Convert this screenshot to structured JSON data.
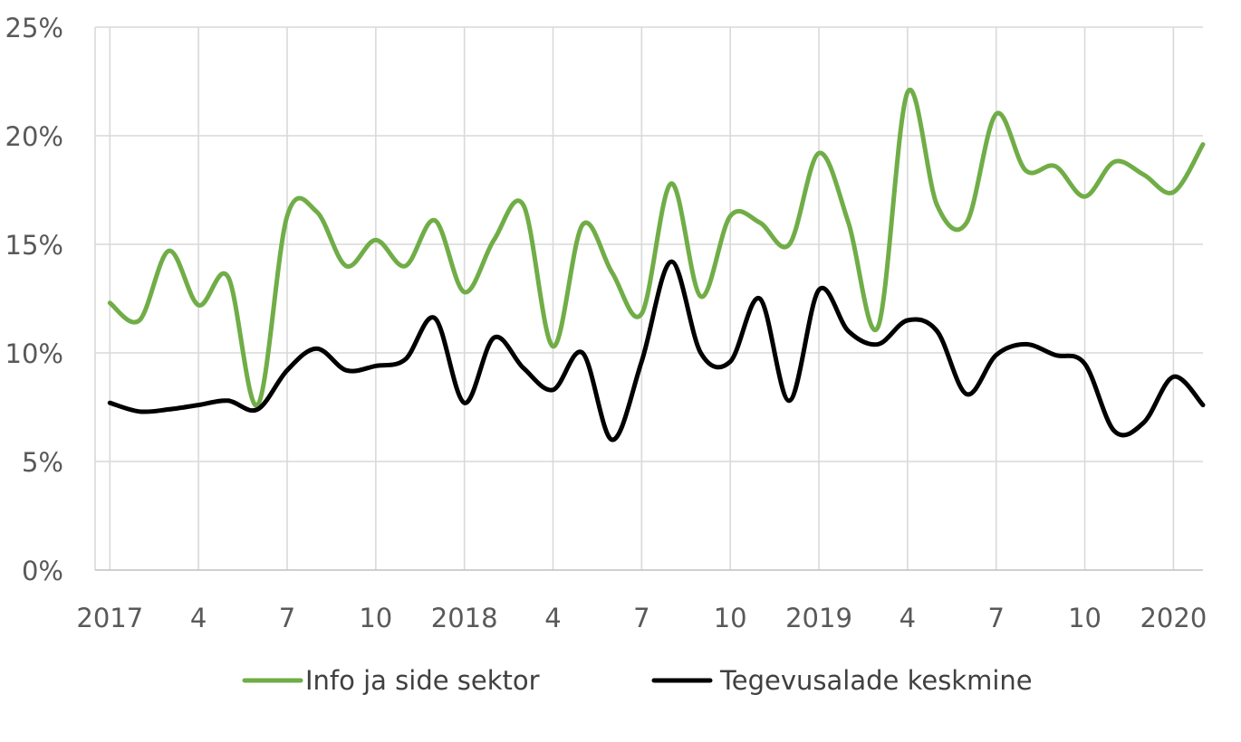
{
  "chart_data": {
    "type": "line",
    "title": "",
    "xlabel": "",
    "ylabel": "",
    "ylim": [
      0,
      25
    ],
    "yticks": [
      "0%",
      "5%",
      "10%",
      "15%",
      "20%",
      "25%"
    ],
    "x_tick_labels": [
      {
        "month": 1,
        "label": "2017"
      },
      {
        "month": 4,
        "label": "4"
      },
      {
        "month": 7,
        "label": "7"
      },
      {
        "month": 10,
        "label": "10"
      },
      {
        "month": 13,
        "label": "2018"
      },
      {
        "month": 16,
        "label": "4"
      },
      {
        "month": 19,
        "label": "7"
      },
      {
        "month": 22,
        "label": "10"
      },
      {
        "month": 25,
        "label": "2019"
      },
      {
        "month": 28,
        "label": "4"
      },
      {
        "month": 31,
        "label": "7"
      },
      {
        "month": 34,
        "label": "10"
      },
      {
        "month": 37,
        "label": "2020"
      }
    ],
    "x": [
      "2017-01",
      "2017-02",
      "2017-03",
      "2017-04",
      "2017-05",
      "2017-06",
      "2017-07",
      "2017-08",
      "2017-09",
      "2017-10",
      "2017-11",
      "2017-12",
      "2018-01",
      "2018-02",
      "2018-03",
      "2018-04",
      "2018-05",
      "2018-06",
      "2018-07",
      "2018-08",
      "2018-09",
      "2018-10",
      "2018-11",
      "2018-12",
      "2019-01",
      "2019-02",
      "2019-03",
      "2019-04",
      "2019-05",
      "2019-06",
      "2019-07",
      "2019-08",
      "2019-09",
      "2019-10",
      "2019-11",
      "2019-12",
      "2020-01",
      "2020-02"
    ],
    "series": [
      {
        "name": "Info ja side sektor",
        "color": "#70ad47",
        "values": [
          12.3,
          11.5,
          14.7,
          12.2,
          13.5,
          7.6,
          16.3,
          16.5,
          14.0,
          15.2,
          14.0,
          16.1,
          12.8,
          15.2,
          16.8,
          10.3,
          15.9,
          13.7,
          11.8,
          17.8,
          12.6,
          16.3,
          16.0,
          15.0,
          19.2,
          16.0,
          11.2,
          22.0,
          16.8,
          16.0,
          21.0,
          18.4,
          18.6,
          17.2,
          18.8,
          18.2,
          17.4,
          19.6
        ]
      },
      {
        "name": "Tegevusalade keskmine",
        "color": "#000000",
        "values": [
          7.7,
          7.3,
          7.4,
          7.6,
          7.8,
          7.4,
          9.2,
          10.2,
          9.2,
          9.4,
          9.7,
          11.6,
          7.7,
          10.7,
          9.3,
          8.3,
          10.0,
          6.0,
          9.6,
          14.2,
          10.0,
          9.6,
          12.5,
          7.8,
          12.9,
          11.0,
          10.4,
          11.5,
          11.0,
          8.1,
          9.9,
          10.4,
          9.9,
          9.5,
          6.4,
          6.8,
          8.9,
          7.6
        ]
      }
    ],
    "grid": true,
    "legend": "bottom"
  }
}
